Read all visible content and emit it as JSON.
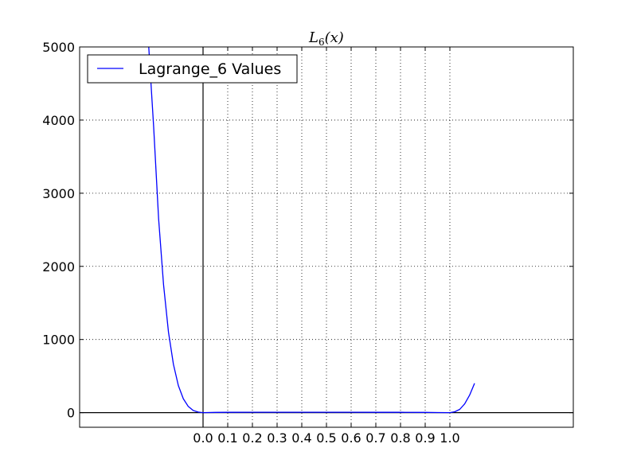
{
  "chart_data": {
    "type": "line",
    "title": "L_6(x)",
    "title_parts": {
      "base": "L",
      "sub": "6",
      "arg": "(x)"
    },
    "xlabel": "",
    "ylabel": "",
    "xlim": [
      -0.5,
      1.5
    ],
    "ylim": [
      -200,
      5000
    ],
    "xticks": [
      0.0,
      0.1,
      0.2,
      0.3,
      0.4,
      0.5,
      0.6,
      0.7,
      0.8,
      0.9,
      1.0
    ],
    "xtick_labels": [
      "0.0",
      "0.1",
      "0.2",
      "0.3",
      "0.4",
      "0.5",
      "0.6",
      "0.7",
      "0.8",
      "0.9",
      "1.0"
    ],
    "yticks": [
      0,
      1000,
      2000,
      3000,
      4000,
      5000
    ],
    "ytick_labels": [
      "0",
      "1000",
      "2000",
      "3000",
      "4000",
      "5000"
    ],
    "grid": true,
    "legend_placement": "top-left",
    "series": [
      {
        "name": "Lagrange_6 Values",
        "color": "#0000ff",
        "x": [
          -0.22,
          -0.2,
          -0.18,
          -0.16,
          -0.14,
          -0.12,
          -0.1,
          -0.08,
          -0.06,
          -0.04,
          -0.02,
          0.0,
          0.05,
          0.1,
          0.2,
          0.3,
          0.4,
          0.5,
          0.6,
          0.7,
          0.8,
          0.9,
          0.95,
          1.0,
          1.02,
          1.04,
          1.06,
          1.08,
          1.1
        ],
        "y": [
          5000,
          3900,
          2650,
          1750,
          1100,
          660,
          370,
          190,
          85,
          30,
          8,
          0,
          3,
          5,
          6,
          6,
          6,
          6,
          6,
          5,
          5,
          3,
          1,
          0,
          12,
          45,
          120,
          240,
          400
        ]
      }
    ],
    "reference_lines": {
      "horizontal_y": 0,
      "vertical_x": 0
    }
  }
}
